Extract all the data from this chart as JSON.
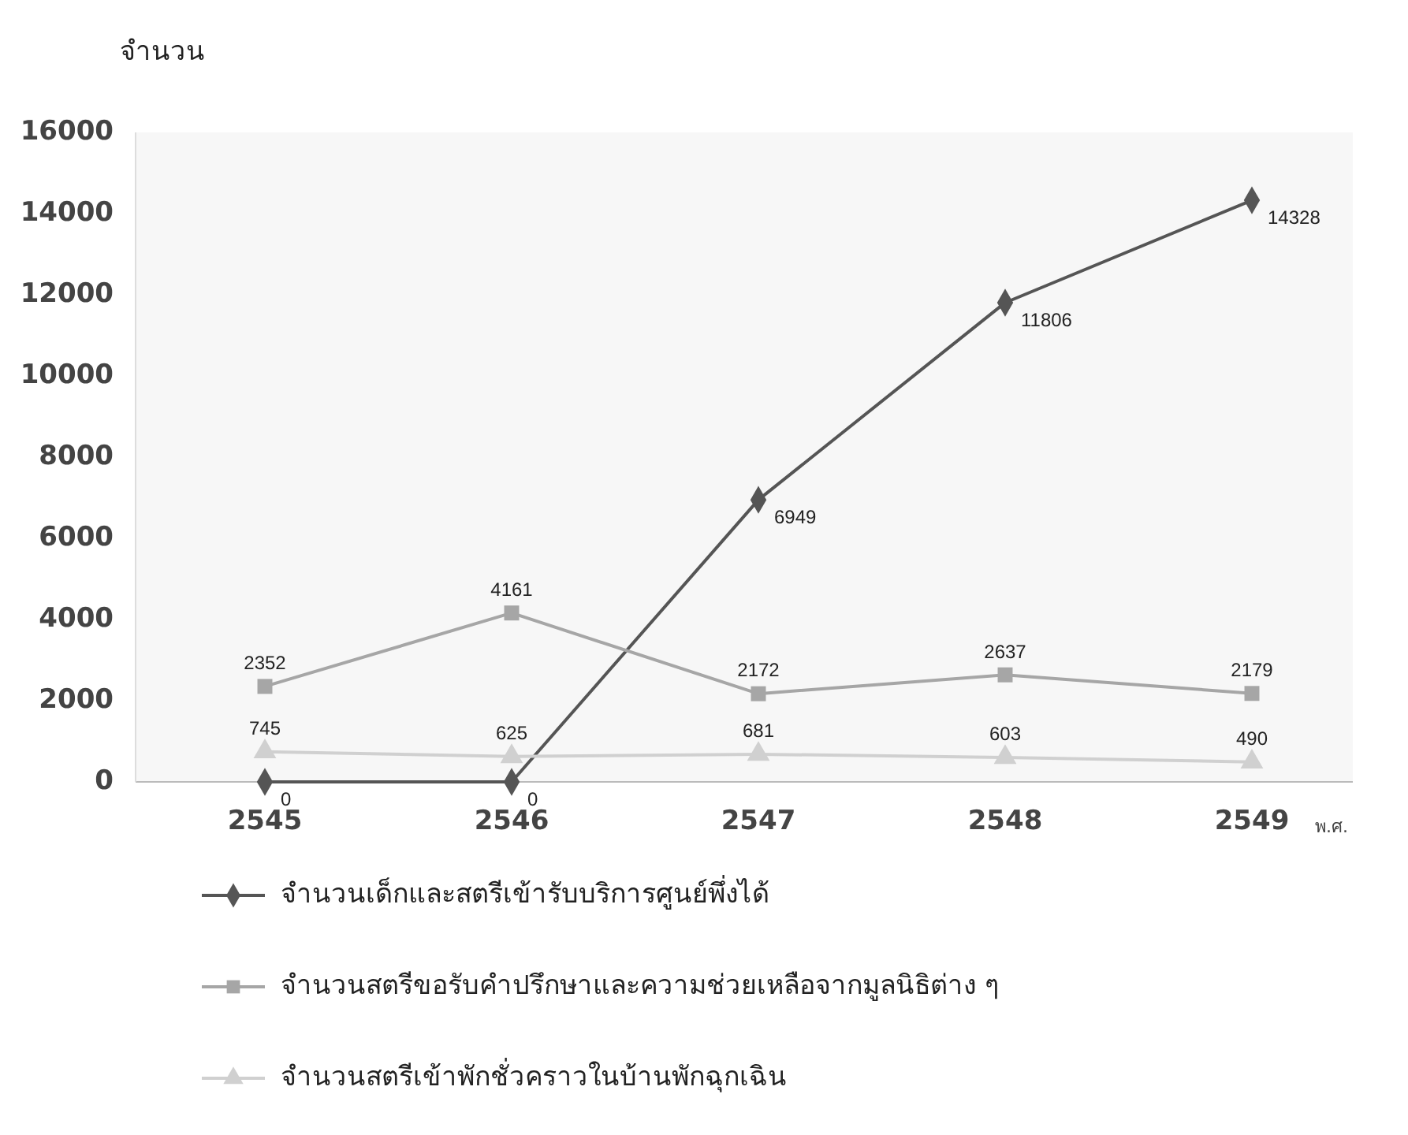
{
  "chart_data": {
    "type": "line",
    "ylabel": "จำนวน",
    "xlabel": "พ.ศ.",
    "categories": [
      "2545",
      "2546",
      "2547",
      "2548",
      "2549"
    ],
    "ylim": [
      0,
      16000
    ],
    "yticks": [
      0,
      2000,
      4000,
      6000,
      8000,
      10000,
      12000,
      14000,
      16000
    ],
    "grid": false,
    "legend": "bottom",
    "data_labels": true,
    "series": [
      {
        "name": "จำนวนเด็กและสตรีเข้ารับบริการศูนย์พึ่งได้",
        "color": "#555555",
        "marker": "diamond",
        "values": [
          0,
          0,
          6949,
          11806,
          14328
        ]
      },
      {
        "name": "จำนวนสตรีขอรับคำปรึกษาและความช่วยเหลือจากมูลนิธิต่าง ๆ",
        "color": "#a6a6a6",
        "marker": "square",
        "values": [
          2352,
          4161,
          2172,
          2637,
          2179
        ]
      },
      {
        "name": "จำนวนสตรีเข้าพักชั่วคราวในบ้านพักฉุกเฉิน",
        "color": "#d0d0d0",
        "marker": "triangle",
        "values": [
          745,
          625,
          681,
          603,
          490
        ]
      }
    ]
  }
}
